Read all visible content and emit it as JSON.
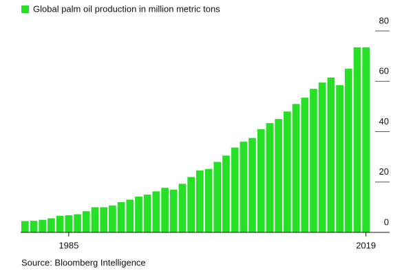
{
  "chart_data": {
    "type": "bar",
    "title": "Global palm oil production in million metric tons",
    "source": "Source: Bloomberg Intelligence",
    "color": "#26e026",
    "categories": [
      null,
      null,
      null,
      null,
      null,
      "1985",
      null,
      null,
      null,
      null,
      null,
      null,
      null,
      null,
      null,
      null,
      null,
      null,
      null,
      null,
      null,
      null,
      null,
      null,
      null,
      null,
      null,
      null,
      null,
      null,
      null,
      null,
      null,
      null,
      null,
      null,
      null,
      null,
      null,
      "2019"
    ],
    "values": [
      4.5,
      4.6,
      5.0,
      5.6,
      6.6,
      6.8,
      7.2,
      8.4,
      10.0,
      10.0,
      10.7,
      12.0,
      13.0,
      14.2,
      15.0,
      16.3,
      17.7,
      17.0,
      19.3,
      22.0,
      24.6,
      25.2,
      28.0,
      30.5,
      33.7,
      36.0,
      37.5,
      41.0,
      43.4,
      45.0,
      48.0,
      51.0,
      53.5,
      57.0,
      59.5,
      61.5,
      58.5,
      65.0,
      73.5,
      73.5
    ],
    "ylim": [
      0,
      80
    ],
    "yticks": [
      0,
      20,
      40,
      60,
      80
    ]
  }
}
